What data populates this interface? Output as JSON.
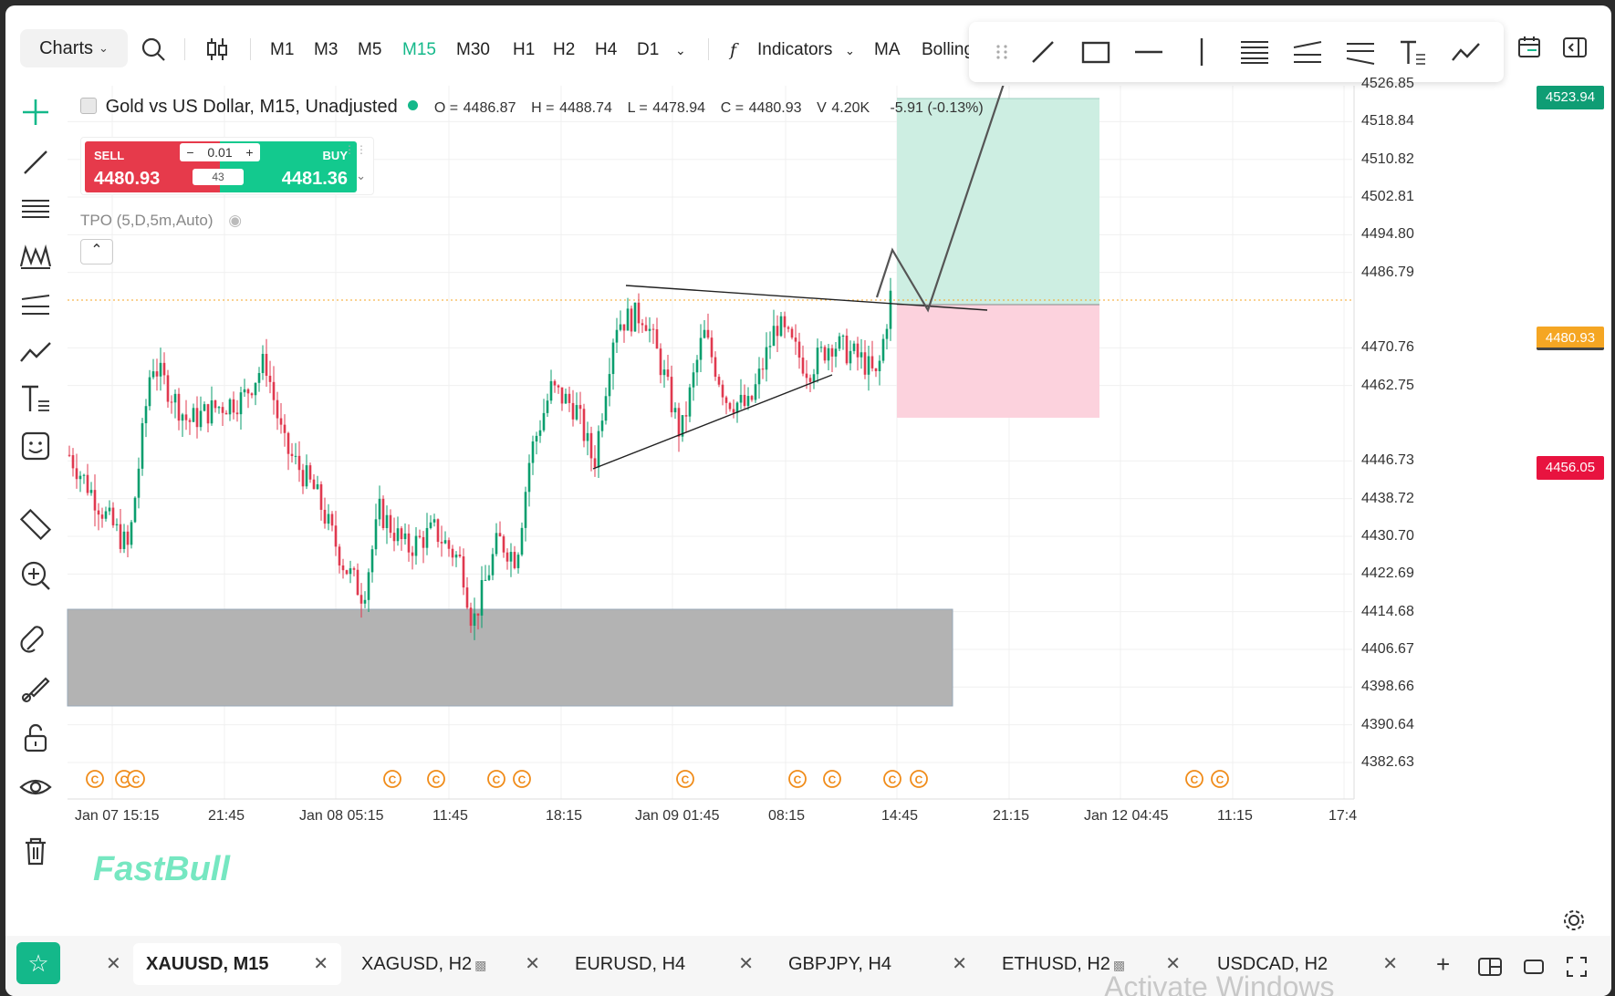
{
  "toolbar": {
    "charts_label": "Charts",
    "timeframes": [
      "M1",
      "M3",
      "M5",
      "M15",
      "M30",
      "H1",
      "H2",
      "H4",
      "D1"
    ],
    "active_timeframe": "M15",
    "indicators_label": "Indicators",
    "ma_label": "MA",
    "bollinger_label": "Bolling"
  },
  "legend": {
    "symbol": "Gold vs US Dollar, M15, Unadjusted",
    "o_label": "O =",
    "o": "4486.87",
    "h_label": "H =",
    "h": "4488.74",
    "l_label": "L =",
    "l": "4478.94",
    "c_label": "C =",
    "c": "4480.93",
    "v_label": "V",
    "v": "4.20K",
    "change": "-5.91 (-0.13%)"
  },
  "trade": {
    "sell_label": "SELL",
    "sell_price": "4480.93",
    "buy_label": "BUY",
    "buy_price": "4481.36",
    "qty": "0.01",
    "spread": "43"
  },
  "indicator_tpo": "TPO (5,D,5m,Auto)",
  "price_axis": [
    "4526.85",
    "4518.84",
    "4510.82",
    "4502.81",
    "4494.80",
    "4486.79",
    "4470.76",
    "4462.75",
    "4446.73",
    "4438.72",
    "4430.70",
    "4422.69",
    "4414.68",
    "4406.67",
    "4398.66",
    "4390.64",
    "4382.63"
  ],
  "price_tags": {
    "target": "4523.94",
    "current": "4480.93",
    "stop": "4456.05"
  },
  "colors": {
    "up": "#0a9e6e",
    "down": "#e0394f",
    "accent": "#14b88a",
    "target_tag": "#0f9d74",
    "current_tag": "#f5a623",
    "stop_tag": "#e8133f"
  },
  "time_axis": [
    "Jan 07 15:15",
    "21:45",
    "Jan 08 05:15",
    "11:45",
    "18:15",
    "Jan 09 01:45",
    "08:15",
    "14:45",
    "21:15",
    "Jan 12 04:45",
    "11:15",
    "17:4"
  ],
  "watermark": "FastBull",
  "tabs": [
    {
      "label": "XAUUSD, M15",
      "active": true,
      "locked": false
    },
    {
      "label": "XAGUSD, H2",
      "active": false,
      "locked": true
    },
    {
      "label": "EURUSD, H4",
      "active": false,
      "locked": false
    },
    {
      "label": "GBPJPY, H4",
      "active": false,
      "locked": false
    },
    {
      "label": "ETHUSD, H2",
      "active": false,
      "locked": true
    },
    {
      "label": "USDCAD, H2",
      "active": false,
      "locked": false
    }
  ],
  "os_overlay": "Activate Windows"
}
